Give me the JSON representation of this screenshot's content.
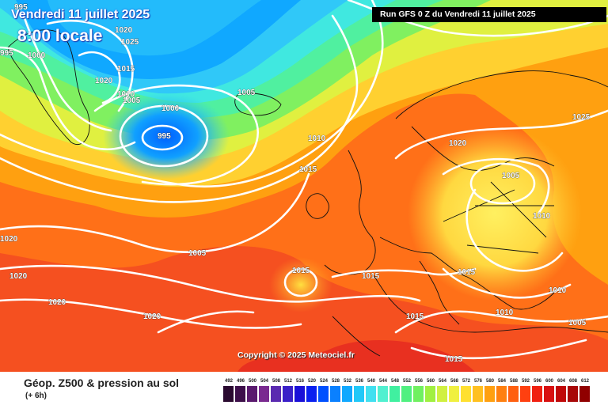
{
  "header": {
    "date": "Vendredi 11 juillet 2025",
    "time": "8:00 locale",
    "run": "Run GFS 0 Z du Vendredi 11 juillet 2025"
  },
  "copyright": "Copyright © 2025 Meteociel.fr",
  "footer": {
    "title": "Géop. Z500 & pression au sol",
    "subtitle": "(+ 6h)"
  },
  "legend": {
    "values": [
      "492",
      "496",
      "500",
      "504",
      "508",
      "512",
      "516",
      "520",
      "524",
      "528",
      "532",
      "536",
      "540",
      "544",
      "548",
      "552",
      "556",
      "560",
      "564",
      "568",
      "572",
      "576",
      "580",
      "584",
      "588",
      "592",
      "596",
      "600",
      "604",
      "608",
      "612"
    ],
    "colors": [
      "#2a0a30",
      "#3d0f4a",
      "#5a1a6e",
      "#7a2a90",
      "#5a2ab0",
      "#3a20c8",
      "#1a10d8",
      "#0a20f0",
      "#0050ff",
      "#0a80ff",
      "#10a8ff",
      "#20c8f8",
      "#40e0f0",
      "#50f0d0",
      "#40f0a0",
      "#50f080",
      "#70f060",
      "#a0f040",
      "#d0f040",
      "#f0f040",
      "#ffe030",
      "#ffc020",
      "#ffa010",
      "#ff8010",
      "#ff6010",
      "#ff4010",
      "#f02010",
      "#d81010",
      "#c00808",
      "#a80808",
      "#900000"
    ]
  },
  "isobars": [
    {
      "label": "995"
    },
    {
      "label": "1020"
    },
    {
      "label": "1025"
    },
    {
      "label": "995"
    },
    {
      "label": "1000"
    },
    {
      "label": "1020"
    },
    {
      "label": "1015"
    },
    {
      "label": "1010"
    },
    {
      "label": "1005"
    },
    {
      "label": "1000"
    },
    {
      "label": "995"
    },
    {
      "label": "1005"
    },
    {
      "label": "1010"
    },
    {
      "label": "1015"
    },
    {
      "label": "1020"
    },
    {
      "label": "1025"
    },
    {
      "label": "1005"
    },
    {
      "label": "1010"
    },
    {
      "label": "1020"
    },
    {
      "label": "1020"
    },
    {
      "label": "1005"
    },
    {
      "label": "1015"
    },
    {
      "label": "1015"
    },
    {
      "label": "1020"
    },
    {
      "label": "1020"
    },
    {
      "label": "1015"
    },
    {
      "label": "1010"
    },
    {
      "label": "1010"
    },
    {
      "label": "1005"
    },
    {
      "label": "1015"
    },
    {
      "label": "1015"
    }
  ]
}
